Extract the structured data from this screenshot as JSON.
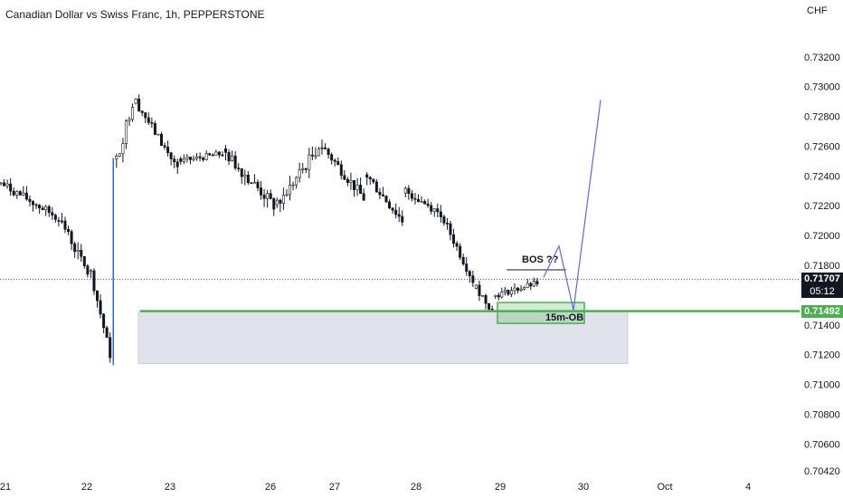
{
  "header": {
    "title": "Canadian Dollar vs Swiss Franc, 1h, PEPPERSTONE",
    "currency": "CHF"
  },
  "price_tags": {
    "last_price": "0.71707",
    "countdown": "05:12",
    "level_price": "0.71492"
  },
  "colors": {
    "up": "#131722",
    "down": "#131722",
    "wick_highlight": "#2962ff",
    "level_line": "#4caf50",
    "projection": "#5b6be8",
    "zone_fill": "#e0e3eb",
    "last_price_tag": "#131722",
    "level_tag": "#4caf50",
    "dotted_line": "#9c27b0"
  },
  "chart_data": {
    "type": "candlestick",
    "title": "Canadian Dollar vs Swiss Franc, 1h, PEPPERSTONE",
    "ylabel": "CHF",
    "ylim": [
      0.7042,
      0.7346
    ],
    "y_ticks": [
      "0.73200",
      "0.73000",
      "0.72800",
      "0.72600",
      "0.72400",
      "0.72200",
      "0.72000",
      "0.71800",
      "0.71400",
      "0.71200",
      "0.71000",
      "0.70800",
      "0.70600",
      "0.70420"
    ],
    "x_ticks": [
      "21",
      "22",
      "23",
      "26",
      "27",
      "28",
      "29",
      "30",
      "Oct",
      "4"
    ],
    "last_price": 0.71707,
    "level_price": 0.71492,
    "demand_zone": {
      "top": 0.71492,
      "bottom": 0.7114
    },
    "order_block": {
      "label": "15m-OB",
      "top": 0.7155,
      "bottom": 0.7141
    },
    "annotations": [
      "BOS ??",
      "15m-OB"
    ],
    "candle_segments": [
      {
        "start": 0.7235,
        "end": 0.7213,
        "n": 18,
        "noise": 0.0006
      },
      {
        "start": 0.7213,
        "end": 0.7175,
        "n": 10,
        "noise": 0.0007
      },
      {
        "start": 0.7175,
        "end": 0.712,
        "n": 7,
        "noise": 0.0006
      },
      {
        "start": 0.725,
        "end": 0.729,
        "n": 6,
        "noise": 0.0009
      },
      {
        "start": 0.729,
        "end": 0.7245,
        "n": 14,
        "noise": 0.0006
      },
      {
        "start": 0.725,
        "end": 0.7255,
        "n": 14,
        "noise": 0.0004
      },
      {
        "start": 0.7255,
        "end": 0.722,
        "n": 16,
        "noise": 0.0008
      },
      {
        "start": 0.722,
        "end": 0.726,
        "n": 14,
        "noise": 0.0008
      },
      {
        "start": 0.726,
        "end": 0.7225,
        "n": 14,
        "noise": 0.0007
      },
      {
        "start": 0.724,
        "end": 0.721,
        "n": 12,
        "noise": 0.0007
      },
      {
        "start": 0.723,
        "end": 0.7215,
        "n": 12,
        "noise": 0.0006
      },
      {
        "start": 0.721,
        "end": 0.717,
        "n": 10,
        "noise": 0.0006
      },
      {
        "start": 0.7165,
        "end": 0.715,
        "n": 6,
        "noise": 0.0005
      },
      {
        "start": 0.716,
        "end": 0.7168,
        "n": 14,
        "noise": 0.0004
      }
    ],
    "projection_path": [
      [
        0.7175,
        0.7178
      ],
      [
        0.7193,
        0.7177
      ],
      [
        0.7177,
        0.715
      ],
      [
        0.715,
        0.7291
      ]
    ],
    "bos_line_price": 0.7177
  }
}
